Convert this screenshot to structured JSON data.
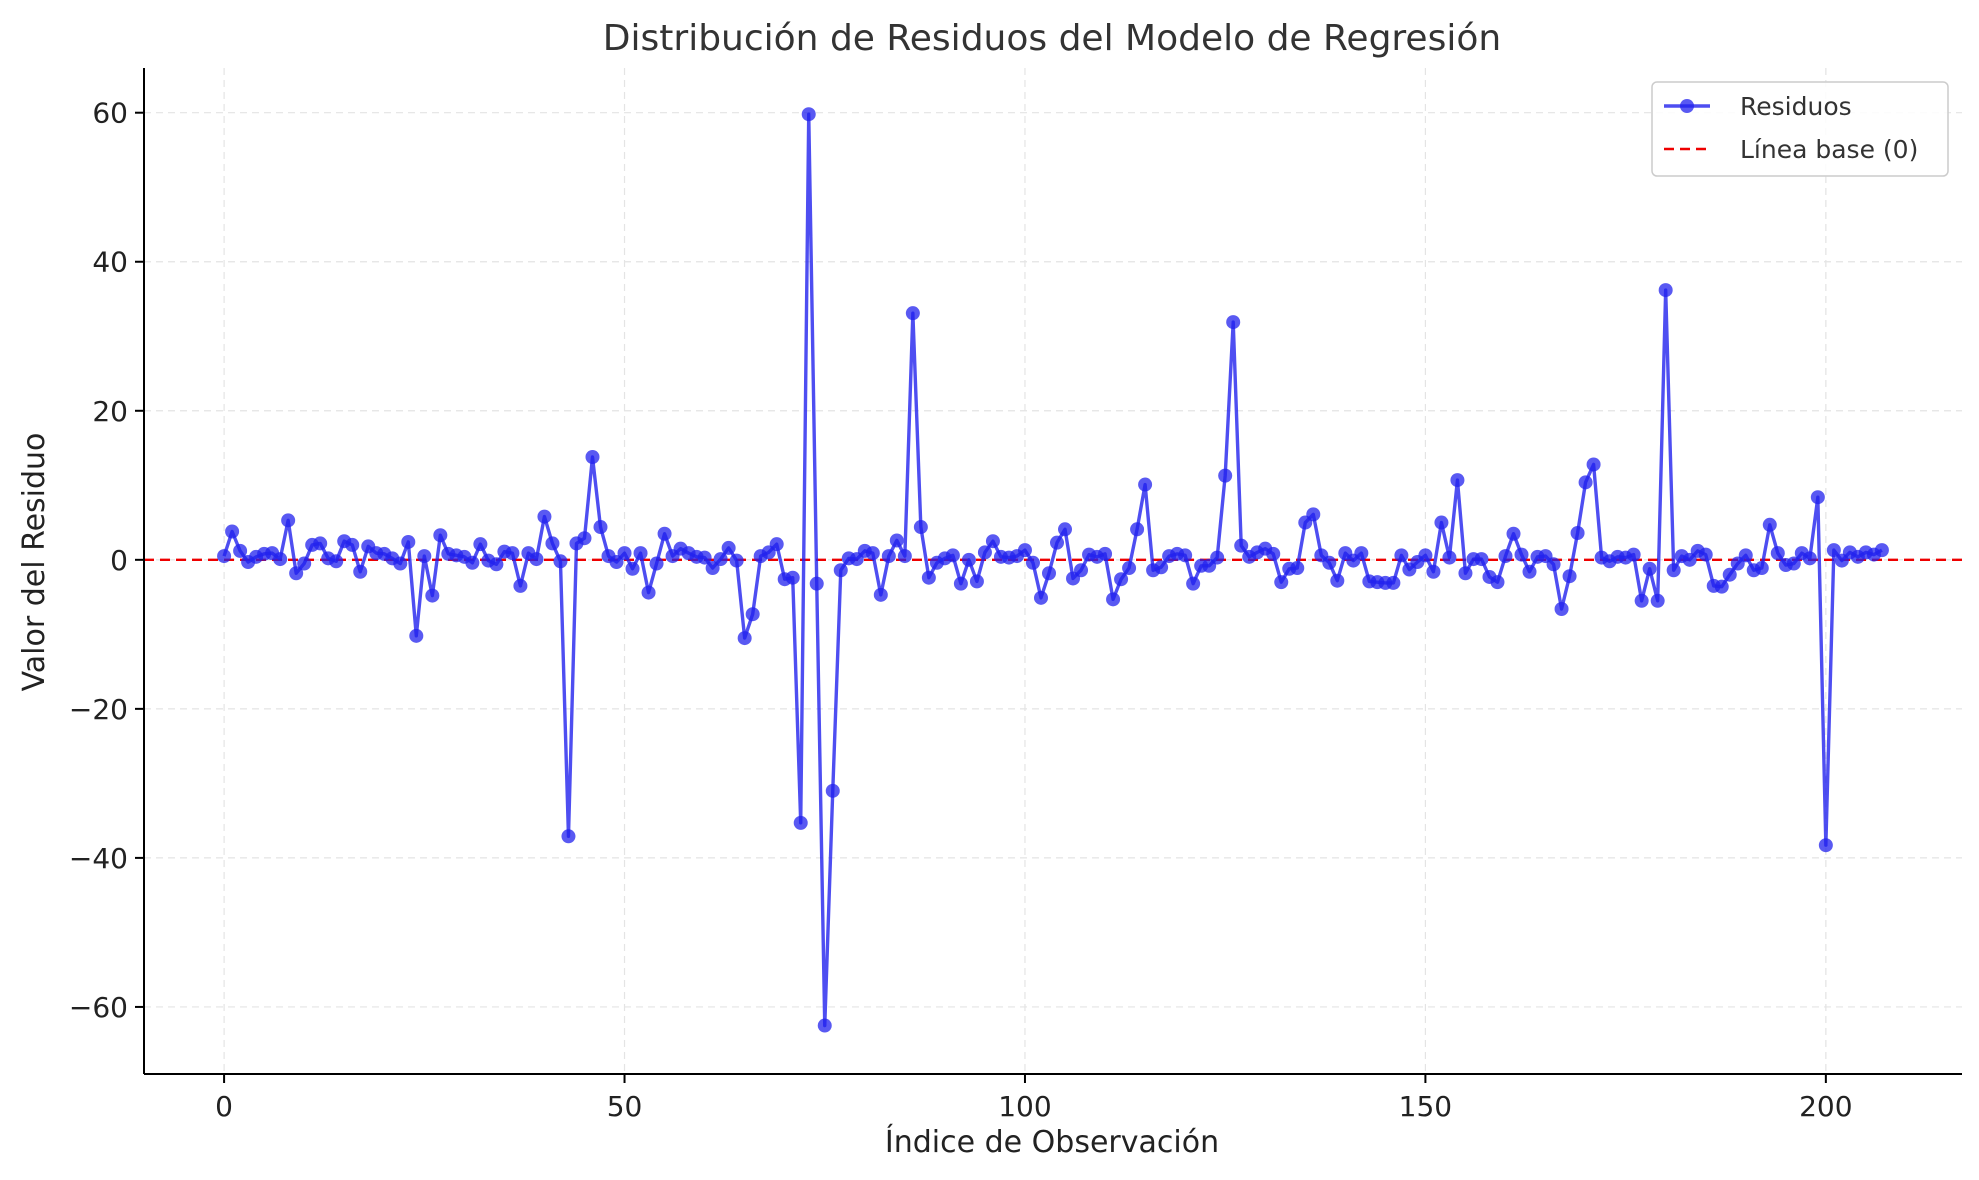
{
  "chart_data": {
    "type": "line",
    "title": "Distribución de Residuos del Modelo de Regresión",
    "xlabel": "Índice de Observación",
    "ylabel": "Valor del Residuo",
    "xlim": [
      -10,
      217
    ],
    "ylim": [
      -69,
      66
    ],
    "x_ticks": [
      0,
      50,
      100,
      150,
      200
    ],
    "y_ticks": [
      -60,
      -40,
      -20,
      0,
      20,
      40,
      60
    ],
    "x_tick_labels": [
      "0",
      "50",
      "100",
      "150",
      "200"
    ],
    "y_tick_labels": [
      "−60",
      "−40",
      "−20",
      "0",
      "20",
      "40",
      "60"
    ],
    "grid": true,
    "legend_position": "top-right",
    "baseline": 0,
    "series": [
      {
        "name": "Residuos",
        "color": "#2222ee",
        "marker": "circle",
        "x_start": 0,
        "values": [
          0.5,
          3.8,
          1.2,
          -0.3,
          0.4,
          0.8,
          0.9,
          0.1,
          5.3,
          -1.8,
          -0.5,
          2.0,
          2.2,
          0.2,
          -0.2,
          2.5,
          2.0,
          -1.6,
          1.8,
          0.9,
          0.8,
          0.2,
          -0.5,
          2.4,
          -10.2,
          0.5,
          -4.8,
          3.3,
          0.8,
          0.6,
          0.4,
          -0.4,
          2.1,
          -0.1,
          -0.6,
          1.1,
          0.9,
          -3.5,
          0.9,
          0.1,
          5.8,
          2.2,
          -0.2,
          -37.1,
          2.2,
          2.9,
          13.8,
          4.4,
          0.5,
          -0.3,
          0.9,
          -1.2,
          0.9,
          -4.4,
          -0.5,
          3.5,
          0.5,
          1.5,
          0.9,
          0.4,
          0.3,
          -1.1,
          0.1,
          1.6,
          -0.1,
          -10.5,
          -7.3,
          0.5,
          1.0,
          2.1,
          -2.6,
          -2.4,
          -35.3,
          59.8,
          -3.2,
          -62.5,
          -31.0,
          -1.4,
          0.2,
          0.1,
          1.2,
          0.9,
          -4.7,
          0.5,
          2.6,
          0.5,
          33.1,
          4.4,
          -2.4,
          -0.4,
          0.2,
          0.6,
          -3.2,
          0.0,
          -2.9,
          1.0,
          2.5,
          0.4,
          0.3,
          0.5,
          1.3,
          -0.4,
          -5.1,
          -1.8,
          2.3,
          4.1,
          -2.5,
          -1.4,
          0.7,
          0.4,
          0.8,
          -5.3,
          -2.6,
          -1.1,
          4.1,
          10.1,
          -1.4,
          -1.0,
          0.5,
          0.8,
          0.6,
          -3.2,
          -0.8,
          -0.8,
          0.3,
          11.3,
          31.9,
          1.9,
          0.4,
          1.0,
          1.5,
          0.8,
          -3.0,
          -1.2,
          -1.1,
          5.0,
          6.1,
          0.6,
          -0.4,
          -2.8,
          0.9,
          -0.1,
          0.9,
          -2.9,
          -3.0,
          -3.1,
          -3.1,
          0.6,
          -1.3,
          -0.3,
          0.6,
          -1.6,
          5.0,
          0.3,
          10.7,
          -1.8,
          0.1,
          0.1,
          -2.3,
          -3.0,
          0.5,
          3.5,
          0.7,
          -1.6,
          0.4,
          0.5,
          -0.6,
          -6.6,
          -2.2,
          3.6,
          10.4,
          12.8,
          0.3,
          -0.2,
          0.4,
          0.3,
          0.7,
          -5.5,
          -1.2,
          -5.5,
          36.2,
          -1.4,
          0.5,
          0.0,
          1.2,
          0.7,
          -3.5,
          -3.6,
          -2.0,
          -0.5,
          0.6,
          -1.4,
          -1.1,
          4.7,
          0.9,
          -0.7,
          -0.5,
          0.9,
          0.2,
          8.4,
          -38.3,
          1.3,
          -0.1,
          1.0,
          0.4,
          1.0,
          0.7,
          1.3
        ]
      },
      {
        "name": "Línea base (0)",
        "color": "#ee0000",
        "style": "dashed",
        "value": 0
      }
    ]
  }
}
